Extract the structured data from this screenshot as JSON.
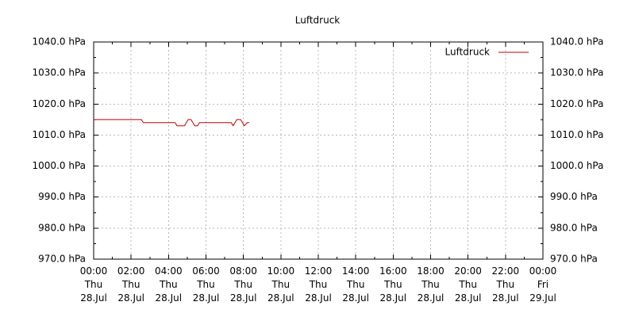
{
  "chart_data": {
    "type": "line",
    "title": "Luftdruck",
    "xlabel": "",
    "ylabel": "",
    "xlim": [
      0,
      24
    ],
    "ylim": [
      970,
      1040
    ],
    "grid": true,
    "legend_position": "top-right",
    "x_ticks": [
      0,
      2,
      4,
      6,
      8,
      10,
      12,
      14,
      16,
      18,
      20,
      22,
      24
    ],
    "x_tick_labels": [
      [
        "00:00",
        "Thu",
        "28.Jul"
      ],
      [
        "02:00",
        "Thu",
        "28.Jul"
      ],
      [
        "04:00",
        "Thu",
        "28.Jul"
      ],
      [
        "06:00",
        "Thu",
        "28.Jul"
      ],
      [
        "08:00",
        "Thu",
        "28.Jul"
      ],
      [
        "10:00",
        "Thu",
        "28.Jul"
      ],
      [
        "12:00",
        "Thu",
        "28.Jul"
      ],
      [
        "14:00",
        "Thu",
        "28.Jul"
      ],
      [
        "16:00",
        "Thu",
        "28.Jul"
      ],
      [
        "18:00",
        "Thu",
        "28.Jul"
      ],
      [
        "20:00",
        "Thu",
        "28.Jul"
      ],
      [
        "22:00",
        "Thu",
        "28.Jul"
      ],
      [
        "00:00",
        "Fri",
        "29.Jul"
      ]
    ],
    "y_ticks": [
      970,
      980,
      990,
      1000,
      1010,
      1020,
      1030,
      1040
    ],
    "y_tick_labels": [
      "970.0 hPa",
      "980.0 hPa",
      "990.0 hPa",
      "1000.0 hPa",
      "1010.0 hPa",
      "1020.0 hPa",
      "1030.0 hPa",
      "1040.0 hPa"
    ],
    "series": [
      {
        "name": "Luftdruck",
        "color": "#c00000",
        "points": [
          [
            0.0,
            1015
          ],
          [
            2.55,
            1015
          ],
          [
            2.65,
            1014
          ],
          [
            4.35,
            1014
          ],
          [
            4.45,
            1013
          ],
          [
            4.85,
            1013
          ],
          [
            4.95,
            1014
          ],
          [
            5.05,
            1015
          ],
          [
            5.2,
            1015
          ],
          [
            5.3,
            1014
          ],
          [
            5.4,
            1013
          ],
          [
            5.55,
            1013
          ],
          [
            5.65,
            1014
          ],
          [
            7.35,
            1014
          ],
          [
            7.45,
            1013
          ],
          [
            7.55,
            1014
          ],
          [
            7.65,
            1015
          ],
          [
            7.85,
            1015
          ],
          [
            7.95,
            1014
          ],
          [
            8.05,
            1013
          ],
          [
            8.2,
            1014
          ],
          [
            8.3,
            1014
          ]
        ]
      }
    ]
  }
}
